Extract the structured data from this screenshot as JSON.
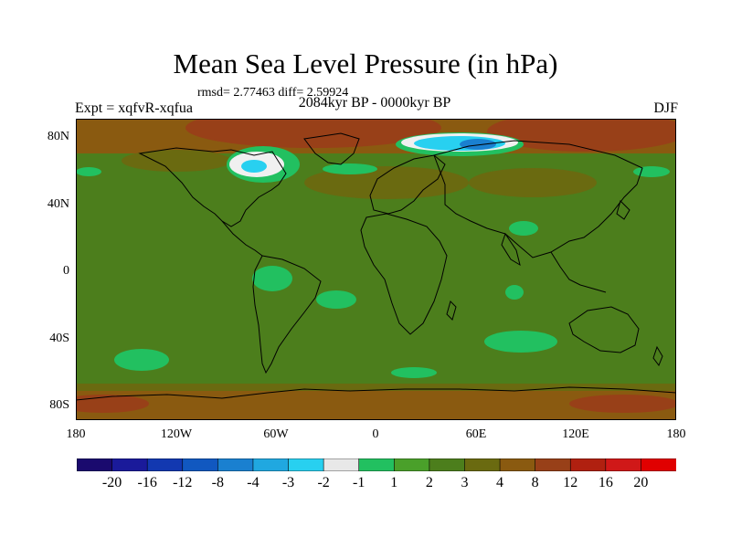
{
  "title": "Mean Sea Level Pressure (in hPa)",
  "stats": "rmsd= 2.77463 diff= 2.59924",
  "experiment": "Expt = xqfvR-xqfua",
  "period": "2084kyr BP - 0000kyr BP",
  "season": "DJF",
  "lat_labels": [
    "80N",
    "40N",
    "0",
    "40S",
    "80S"
  ],
  "lon_labels": [
    "180",
    "120W",
    "60W",
    "0",
    "60E",
    "120E",
    "180"
  ],
  "colorbar": {
    "labels": [
      "-20",
      "-16",
      "-12",
      "-8",
      "-4",
      "-3",
      "-2",
      "-1",
      "1",
      "2",
      "3",
      "4",
      "8",
      "12",
      "16",
      "20"
    ],
    "colors": [
      "#1a0a6e",
      "#1a1a9a",
      "#1238b0",
      "#1158c0",
      "#1a80d0",
      "#20a8e0",
      "#28d0f0",
      "#e8e8e8",
      "#22c060",
      "#4aa02a",
      "#4c7e1c",
      "#6a6a10",
      "#8a5a10",
      "#984018",
      "#b02010",
      "#d01818",
      "#e00000"
    ]
  },
  "colors": {
    "ocean_base": "#4c7e1c",
    "positive_mid": "#8a5a10",
    "positive_high": "#b02010",
    "light_green": "#22c060",
    "white": "#f0f0f0"
  }
}
